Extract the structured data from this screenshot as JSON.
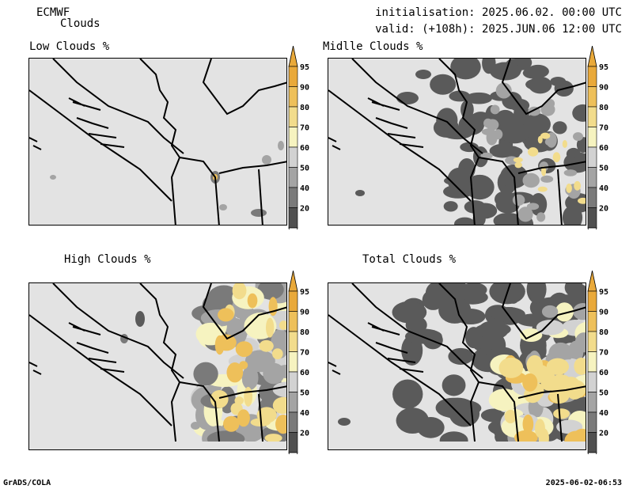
{
  "header": {
    "source": "ECMWF",
    "product": "Clouds",
    "init": "initialisation: 2025.06.02. 00:00 UTC",
    "valid": "valid: (+108h): 2025.JUN.06 12:00 UTC"
  },
  "panels": [
    {
      "id": "low",
      "title": "Low Clouds %"
    },
    {
      "id": "mid",
      "title": "Midlle Clouds %"
    },
    {
      "id": "high",
      "title": "High Clouds %"
    },
    {
      "id": "total",
      "title": "Total Clouds %"
    }
  ],
  "legend": {
    "levels": [
      "20",
      "40",
      "50",
      "60",
      "70",
      "80",
      "90",
      "95"
    ],
    "colors": [
      "#ffffff",
      "#505050",
      "#7a7a7a",
      "#a4a4a4",
      "#d2d2d2",
      "#f6f3c0",
      "#f2dc8c",
      "#eec05a",
      "#e9a93a"
    ]
  },
  "footer": {
    "left": "GrADS/COLA",
    "right": "2025-06-02-06:53"
  }
}
